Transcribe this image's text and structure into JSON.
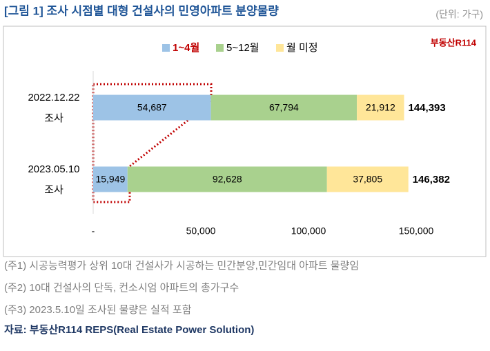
{
  "chart_data": {
    "type": "stacked-barh",
    "title": "[그림 1] 조사 시점별 대형 건설사의 민영아파트 분양물량",
    "unit": "(단위: 가구)",
    "logo": "부동산R114",
    "categories": [
      [
        "2022.12.22",
        "조사"
      ],
      [
        "2023.05.10",
        "조사"
      ]
    ],
    "series": [
      {
        "name": "1~4월",
        "color": "#9dc3e6",
        "values": [
          54687,
          15949
        ],
        "value_labels": [
          "54,687",
          "15,949"
        ]
      },
      {
        "name": "5~12월",
        "color": "#a9d18e",
        "values": [
          67794,
          92628
        ],
        "value_labels": [
          "67,794",
          "92,628"
        ]
      },
      {
        "name": "월 미정",
        "color": "#ffe699",
        "values": [
          21912,
          37805
        ],
        "value_labels": [
          "21,912",
          "37,805"
        ]
      }
    ],
    "totals": [
      144393,
      146382
    ],
    "total_labels": [
      "144,393",
      "146,382"
    ],
    "xlim": [
      0,
      150000
    ],
    "xticks": [
      {
        "value": 0,
        "label": "-"
      },
      {
        "value": 50000,
        "label": "50,000"
      },
      {
        "value": 100000,
        "label": "100,000"
      },
      {
        "value": 150000,
        "label": "150,000"
      }
    ],
    "notes": [
      "(주1) 시공능력평가 상위 10대 건설사가 시공하는 민간분양,민간임대 아파트 물량임",
      "(주2) 10대 건설사의 단독, 컨소시엄 아파트의 총가구수",
      "(주3) 2023.5.10일 조사된 물량은 실적 포함"
    ],
    "source": "자료: 부동산R114 REPS(Real Estate Power Solution)"
  }
}
